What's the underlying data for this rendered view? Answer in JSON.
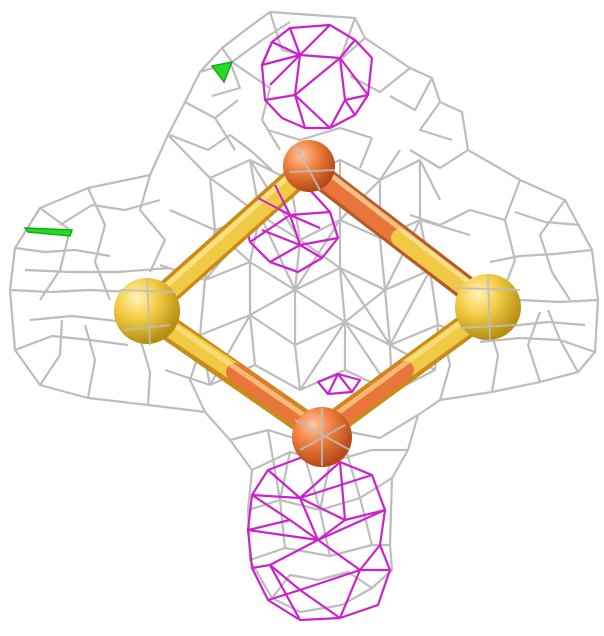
{
  "scene": {
    "description_free": true,
    "colors": {
      "background": "#ffffff",
      "density_mesh": "#bdbdbd",
      "difference_mesh_positive": "#cc22cc",
      "difference_mesh_marker": "#22dd22",
      "iron_atom": "#e8733a",
      "sulfur_atom": "#f2cc44"
    },
    "atoms": [
      {
        "element": "Fe",
        "label": "iron-atom-top"
      },
      {
        "element": "Fe",
        "label": "iron-atom-bottom"
      },
      {
        "element": "S",
        "label": "sulfur-atom-left"
      },
      {
        "element": "S",
        "label": "sulfur-atom-right"
      }
    ]
  }
}
